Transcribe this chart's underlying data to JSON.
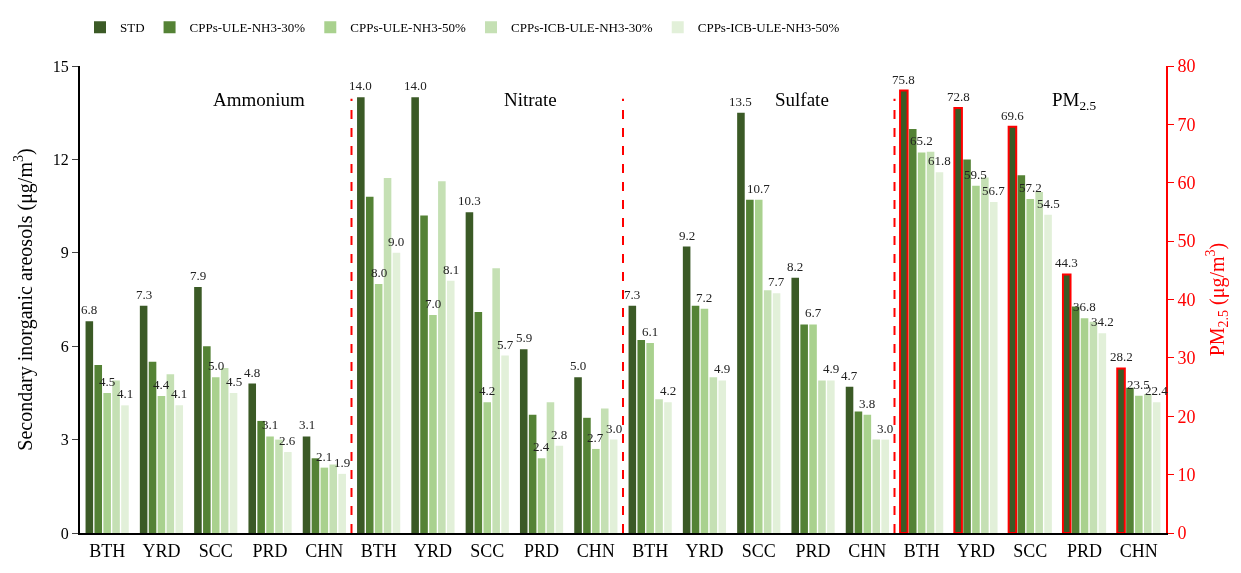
{
  "chart_data": {
    "type": "bar",
    "categories": [
      "BTH",
      "YRD",
      "SCC",
      "PRD",
      "CHN",
      "BTH",
      "YRD",
      "SCC",
      "PRD",
      "CHN",
      "BTH",
      "YRD",
      "SCC",
      "PRD",
      "CHN",
      "BTH",
      "YRD",
      "SCC",
      "PRD",
      "CHN"
    ],
    "series": [
      {
        "name": "STD",
        "color": "#3b5a26",
        "values": [
          6.8,
          7.3,
          7.9,
          4.8,
          3.1,
          14.0,
          14.0,
          10.3,
          5.9,
          5.0,
          7.3,
          9.2,
          13.5,
          8.2,
          4.7,
          null,
          null,
          null,
          null,
          null
        ],
        "value_labels": [
          "6.8",
          "7.3",
          "7.9",
          "4.8",
          "3.1",
          "14.0",
          "14.0",
          "10.3",
          "5.9",
          "5.0",
          "7.3",
          "9.2",
          "13.5",
          "8.2",
          "4.7",
          null,
          null,
          null,
          null,
          null
        ]
      },
      {
        "name": "CPPs-ULE-NH3-30%",
        "color": "#548235",
        "values": [
          5.4,
          5.5,
          6.0,
          3.6,
          2.4,
          10.8,
          10.2,
          7.1,
          3.8,
          3.7,
          6.2,
          7.3,
          10.7,
          6.7,
          3.9,
          null,
          null,
          null,
          null,
          null
        ]
      },
      {
        "name": "CPPs-ULE-NH3-50%",
        "color": "#a9d18e",
        "values": [
          4.5,
          4.4,
          5.0,
          3.1,
          2.1,
          8.0,
          7.0,
          4.2,
          2.4,
          2.7,
          6.1,
          7.2,
          10.7,
          6.7,
          3.8,
          null,
          null,
          null,
          null,
          null
        ],
        "value_labels": [
          "4.5",
          "4.4",
          "5.0",
          "3.1",
          "2.1",
          "8.0",
          "7.0",
          "4.2",
          "2.4",
          "2.7",
          "6.1",
          "7.2",
          "10.7",
          "6.7",
          "3.8",
          null,
          null,
          null,
          null,
          null
        ]
      },
      {
        "name": "CPPs-ICB-ULE-NH3-30%",
        "color": "#c5e0b4",
        "values": [
          4.9,
          5.1,
          5.3,
          3.0,
          2.2,
          11.4,
          11.3,
          8.5,
          4.2,
          4.0,
          4.3,
          5.0,
          7.8,
          4.9,
          3.0,
          null,
          null,
          null,
          null,
          null
        ]
      },
      {
        "name": "CPPs-ICB-ULE-NH3-50%",
        "color": "#e2f0d9",
        "values": [
          4.1,
          4.1,
          4.5,
          2.6,
          1.9,
          9.0,
          8.1,
          5.7,
          2.8,
          3.0,
          4.2,
          4.9,
          7.7,
          4.9,
          3.0,
          null,
          null,
          null,
          null,
          null
        ],
        "value_labels": [
          "4.1",
          "4.1",
          "4.5",
          "2.6",
          "1.9",
          "9.0",
          "8.1",
          "5.7",
          "2.8",
          "3.0",
          "4.2",
          "4.9",
          "7.7",
          "4.9",
          "3.0",
          null,
          null,
          null,
          null,
          null
        ]
      },
      {
        "axis": "y2",
        "color": "#3b5a26",
        "values": [
          null,
          null,
          null,
          null,
          null,
          null,
          null,
          null,
          null,
          null,
          null,
          null,
          null,
          null,
          null,
          75.8,
          72.8,
          69.6,
          44.3,
          28.2
        ],
        "value_labels": [
          null,
          null,
          null,
          null,
          null,
          null,
          null,
          null,
          null,
          null,
          null,
          null,
          null,
          null,
          null,
          "75.8",
          "72.8",
          "69.6",
          "44.3",
          "28.2"
        ]
      },
      {
        "axis": "y2",
        "color": "#548235",
        "values": [
          null,
          null,
          null,
          null,
          null,
          null,
          null,
          null,
          null,
          null,
          null,
          null,
          null,
          null,
          null,
          69.2,
          64.0,
          61.3,
          38.8,
          24.9
        ]
      },
      {
        "axis": "y2",
        "color": "#a9d18e",
        "values": [
          null,
          null,
          null,
          null,
          null,
          null,
          null,
          null,
          null,
          null,
          null,
          null,
          null,
          null,
          null,
          65.2,
          59.5,
          57.2,
          36.8,
          23.5
        ],
        "value_labels": [
          null,
          null,
          null,
          null,
          null,
          null,
          null,
          null,
          null,
          null,
          null,
          null,
          null,
          null,
          null,
          "65.2",
          "59.5",
          "57.2",
          "36.8",
          "23.5"
        ]
      },
      {
        "axis": "y2",
        "color": "#c5e0b4",
        "values": [
          null,
          null,
          null,
          null,
          null,
          null,
          null,
          null,
          null,
          null,
          null,
          null,
          null,
          null,
          null,
          65.3,
          60.9,
          58.4,
          36.2,
          23.8
        ]
      },
      {
        "axis": "y2",
        "color": "#e2f0d9",
        "values": [
          null,
          null,
          null,
          null,
          null,
          null,
          null,
          null,
          null,
          null,
          null,
          null,
          null,
          null,
          null,
          61.8,
          56.7,
          54.5,
          34.2,
          22.4
        ],
        "value_labels": [
          null,
          null,
          null,
          null,
          null,
          null,
          null,
          null,
          null,
          null,
          null,
          null,
          null,
          null,
          null,
          "61.8",
          "56.7",
          "54.5",
          "34.2",
          "22.4"
        ]
      }
    ],
    "ylabel": "Secondary inorganic areosols (μg/m$^{3}$)",
    "y2label": "PM$_{2.5}$ (μg/m$^{3}$)",
    "ylim": [
      0,
      15
    ],
    "yticks": [
      0,
      3,
      6,
      9,
      12,
      15
    ],
    "y2lim": [
      0,
      80
    ],
    "y2ticks": [
      0,
      10,
      20,
      30,
      40,
      50,
      60,
      70,
      80
    ],
    "annotations": [
      "Ammonium",
      "Nitrate",
      "Sulfate",
      "PM$_{2.5}$"
    ],
    "legend": "top"
  }
}
